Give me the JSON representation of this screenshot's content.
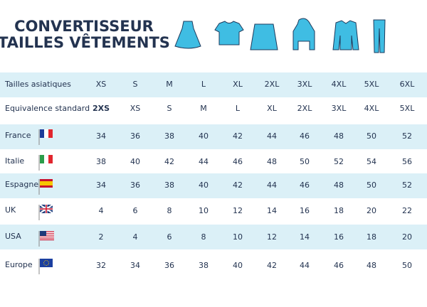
{
  "header": {
    "title": [
      "CONVERTISSEUR",
      "TAILLES VÊTEMENTS"
    ]
  },
  "table": {
    "rows": [
      [
        "Tailles asiatiques",
        "XS",
        "S",
        "M",
        "L",
        "XL",
        "2XL",
        "3XL",
        "4XL",
        "5XL",
        "6XL"
      ],
      [
        "Equivalence standard",
        "2XS",
        "XS",
        "S",
        "M",
        "L",
        "XL",
        "2XL",
        "3XL",
        "4XL",
        "5XL"
      ],
      [
        "France",
        34,
        36,
        38,
        40,
        42,
        44,
        46,
        48,
        50,
        52
      ],
      [
        "Italie",
        38,
        40,
        42,
        44,
        46,
        48,
        50,
        52,
        54,
        56
      ],
      [
        "Espagne",
        34,
        36,
        38,
        40,
        42,
        44,
        46,
        48,
        50,
        52
      ],
      [
        "UK",
        4,
        6,
        8,
        10,
        12,
        14,
        16,
        18,
        20,
        22
      ],
      [
        "USA",
        2,
        4,
        6,
        8,
        10,
        12,
        14,
        16,
        18,
        20
      ],
      [
        "Europe",
        32,
        34,
        36,
        38,
        40,
        42,
        44,
        46,
        48,
        50
      ]
    ]
  }
}
